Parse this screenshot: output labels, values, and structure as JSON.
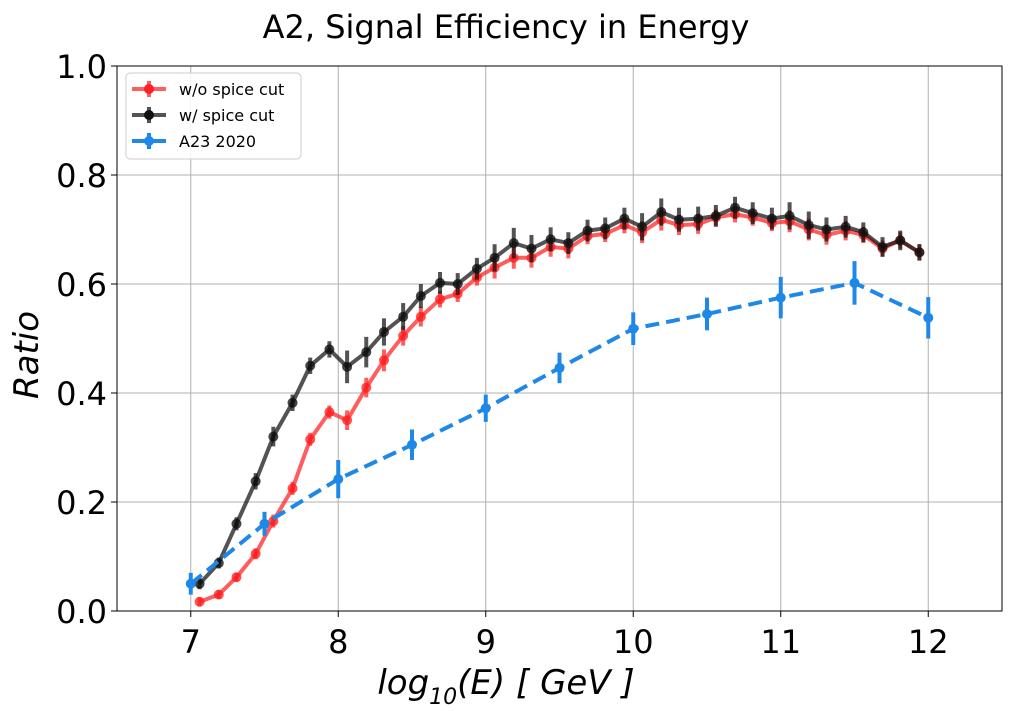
{
  "chart_data": {
    "type": "line",
    "title": "A2, Signal Efficiency in Energy",
    "xlabel_base": "log",
    "xlabel_sub": "10",
    "xlabel_rest": "(E) [ GeV ]",
    "ylabel": "Ratio",
    "xlim": [
      6.5,
      12.5
    ],
    "ylim": [
      0.0,
      1.0
    ],
    "xticks": [
      7,
      8,
      9,
      10,
      11,
      12
    ],
    "yticks": [
      0.0,
      0.2,
      0.4,
      0.6,
      0.8,
      1.0
    ],
    "xtick_labels": [
      "7",
      "8",
      "9",
      "10",
      "11",
      "12"
    ],
    "ytick_labels": [
      "0.0",
      "0.2",
      "0.4",
      "0.6",
      "0.8",
      "1.0"
    ],
    "grid": true,
    "legend_position": "top-left",
    "series": [
      {
        "name": "w/o spice cut",
        "color": "#ff2020",
        "dashed": false,
        "x": [
          7.06,
          7.19,
          7.31,
          7.44,
          7.56,
          7.69,
          7.81,
          7.94,
          8.06,
          8.19,
          8.31,
          8.44,
          8.56,
          8.69,
          8.81,
          8.94,
          9.06,
          9.19,
          9.31,
          9.44,
          9.56,
          9.69,
          9.81,
          9.94,
          10.06,
          10.19,
          10.31,
          10.44,
          10.56,
          10.69,
          10.81,
          10.94,
          11.06,
          11.19,
          11.31,
          11.44,
          11.56,
          11.69,
          11.81,
          11.94
        ],
        "y": [
          0.017,
          0.03,
          0.062,
          0.105,
          0.165,
          0.225,
          0.315,
          0.365,
          0.35,
          0.41,
          0.46,
          0.505,
          0.54,
          0.572,
          0.582,
          0.612,
          0.63,
          0.648,
          0.648,
          0.668,
          0.665,
          0.688,
          0.692,
          0.708,
          0.695,
          0.718,
          0.708,
          0.71,
          0.722,
          0.728,
          0.722,
          0.712,
          0.715,
          0.7,
          0.69,
          0.698,
          0.69,
          0.665,
          0.68,
          0.658
        ],
        "err": [
          0.008,
          0.008,
          0.008,
          0.01,
          0.012,
          0.012,
          0.012,
          0.012,
          0.018,
          0.018,
          0.02,
          0.018,
          0.018,
          0.015,
          0.015,
          0.015,
          0.02,
          0.02,
          0.018,
          0.018,
          0.018,
          0.015,
          0.015,
          0.015,
          0.02,
          0.02,
          0.018,
          0.018,
          0.015,
          0.015,
          0.015,
          0.015,
          0.02,
          0.02,
          0.018,
          0.018,
          0.015,
          0.015,
          0.015,
          0.015
        ]
      },
      {
        "name": "w/ spice cut",
        "color": "#111111",
        "dashed": false,
        "x": [
          7.06,
          7.19,
          7.31,
          7.44,
          7.56,
          7.69,
          7.81,
          7.94,
          8.06,
          8.19,
          8.31,
          8.44,
          8.56,
          8.69,
          8.81,
          8.94,
          9.06,
          9.19,
          9.31,
          9.44,
          9.56,
          9.69,
          9.81,
          9.94,
          10.06,
          10.19,
          10.31,
          10.44,
          10.56,
          10.69,
          10.81,
          10.94,
          11.06,
          11.19,
          11.31,
          11.44,
          11.56,
          11.69,
          11.81,
          11.94
        ],
        "y": [
          0.05,
          0.088,
          0.16,
          0.238,
          0.32,
          0.382,
          0.45,
          0.48,
          0.448,
          0.475,
          0.512,
          0.54,
          0.578,
          0.602,
          0.6,
          0.628,
          0.648,
          0.675,
          0.665,
          0.682,
          0.675,
          0.698,
          0.702,
          0.72,
          0.705,
          0.732,
          0.718,
          0.72,
          0.725,
          0.74,
          0.73,
          0.72,
          0.725,
          0.708,
          0.7,
          0.705,
          0.695,
          0.668,
          0.68,
          0.658
        ],
        "err": [
          0.01,
          0.01,
          0.012,
          0.015,
          0.018,
          0.015,
          0.015,
          0.015,
          0.03,
          0.028,
          0.025,
          0.025,
          0.022,
          0.02,
          0.02,
          0.02,
          0.025,
          0.028,
          0.025,
          0.022,
          0.02,
          0.02,
          0.02,
          0.02,
          0.025,
          0.025,
          0.022,
          0.022,
          0.02,
          0.02,
          0.02,
          0.02,
          0.025,
          0.025,
          0.022,
          0.02,
          0.018,
          0.018,
          0.018,
          0.015
        ]
      },
      {
        "name": "A23 2020",
        "color": "#1e88e8",
        "dashed": true,
        "x": [
          7.0,
          7.5,
          8.0,
          8.5,
          9.0,
          9.5,
          10.0,
          10.5,
          11.0,
          11.5,
          12.0
        ],
        "y": [
          0.05,
          0.16,
          0.242,
          0.305,
          0.372,
          0.446,
          0.518,
          0.545,
          0.575,
          0.602,
          0.538
        ],
        "err": [
          0.02,
          0.022,
          0.035,
          0.028,
          0.025,
          0.028,
          0.03,
          0.03,
          0.038,
          0.04,
          0.038
        ]
      }
    ]
  }
}
